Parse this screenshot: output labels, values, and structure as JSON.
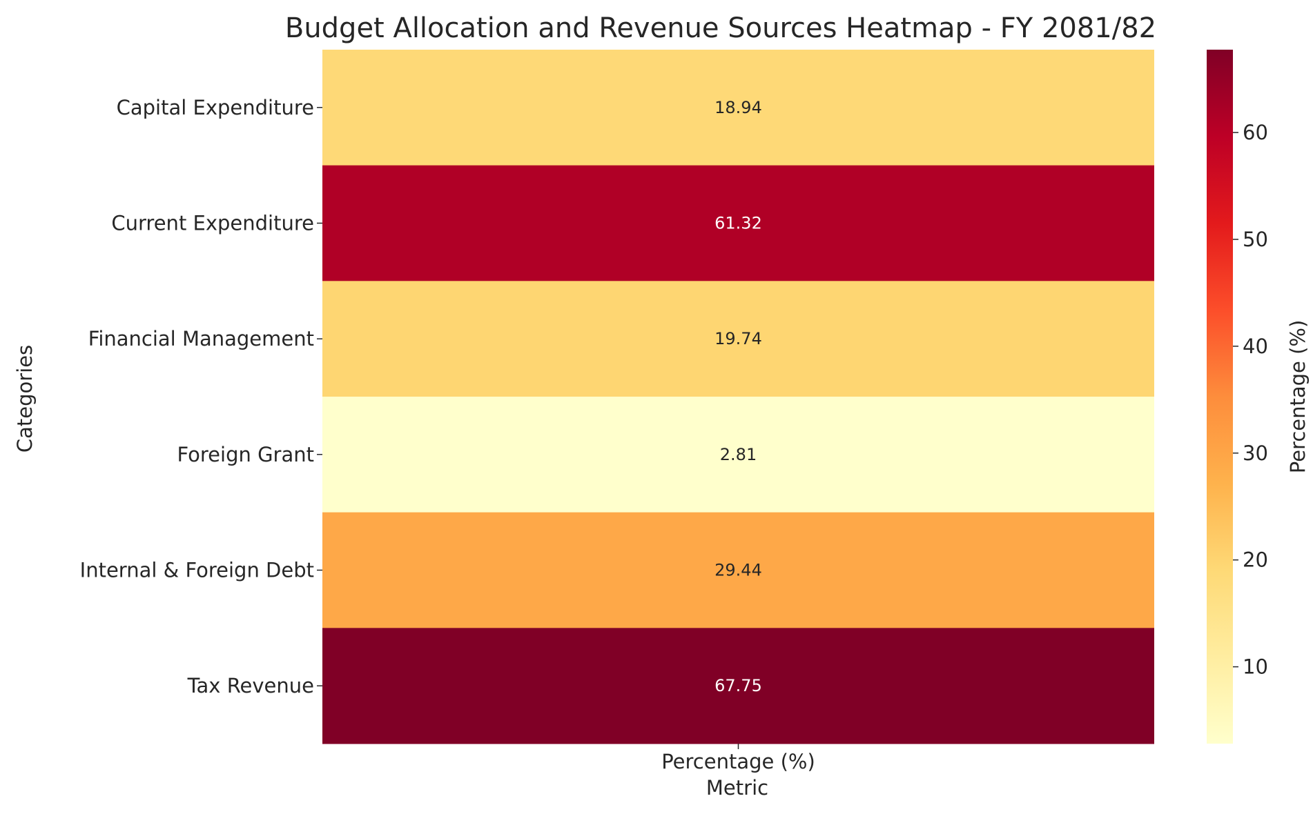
{
  "chart_data": {
    "type": "heatmap",
    "title": "Budget Allocation and Revenue Sources Heatmap - FY 2081/82",
    "xlabel": "Metric",
    "ylabel": "Categories",
    "columns": [
      "Percentage (%)"
    ],
    "categories": [
      "Capital Expenditure",
      "Current Expenditure",
      "Financial Management",
      "Foreign Grant",
      "Internal & Foreign Debt",
      "Tax Revenue"
    ],
    "values": [
      18.94,
      61.32,
      19.74,
      2.81,
      29.44,
      67.75
    ],
    "value_labels": [
      "18.94",
      "61.32",
      "19.74",
      "2.81",
      "29.44",
      "67.75"
    ],
    "colormap": "YlOrRd",
    "vmin": 2.81,
    "vmax": 67.75,
    "colorbar": {
      "label": "Percentage (%)",
      "ticks": [
        10,
        20,
        30,
        40,
        50,
        60
      ],
      "tick_labels": [
        "10",
        "20",
        "30",
        "40",
        "50",
        "60"
      ]
    }
  }
}
